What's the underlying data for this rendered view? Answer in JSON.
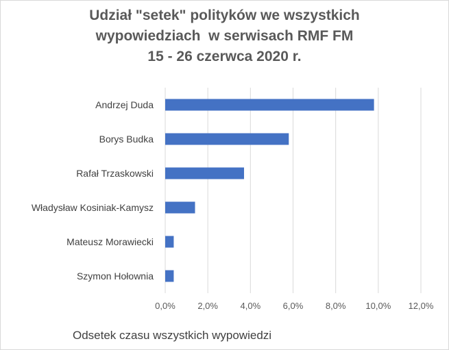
{
  "chart_data": {
    "type": "bar",
    "orientation": "horizontal",
    "title": [
      "Udział \"setek\" polityków we wszystkich",
      "wypowiedziach  w serwisach RMF FM",
      "15 - 26 czerwca 2020 r."
    ],
    "xlabel": "Odsetek czasu wszystkich wypowiedzi",
    "ylabel": "",
    "categories": [
      "Andrzej Duda",
      "Borys Budka",
      "Rafał Trzaskowski",
      "Władysław Kosiniak-Kamysz",
      "Mateusz Morawiecki",
      "Szymon Hołownia"
    ],
    "values": [
      9.8,
      5.8,
      3.7,
      1.4,
      0.4,
      0.4
    ],
    "xlim": [
      0,
      12
    ],
    "xticks": [
      "0,0%",
      "2,0%",
      "4,0%",
      "6,0%",
      "8,0%",
      "10,0%",
      "12,0%"
    ],
    "grid": "vertical",
    "legend": "none",
    "bar_color": "#4472c4",
    "grid_color": "#d9d9d9"
  }
}
